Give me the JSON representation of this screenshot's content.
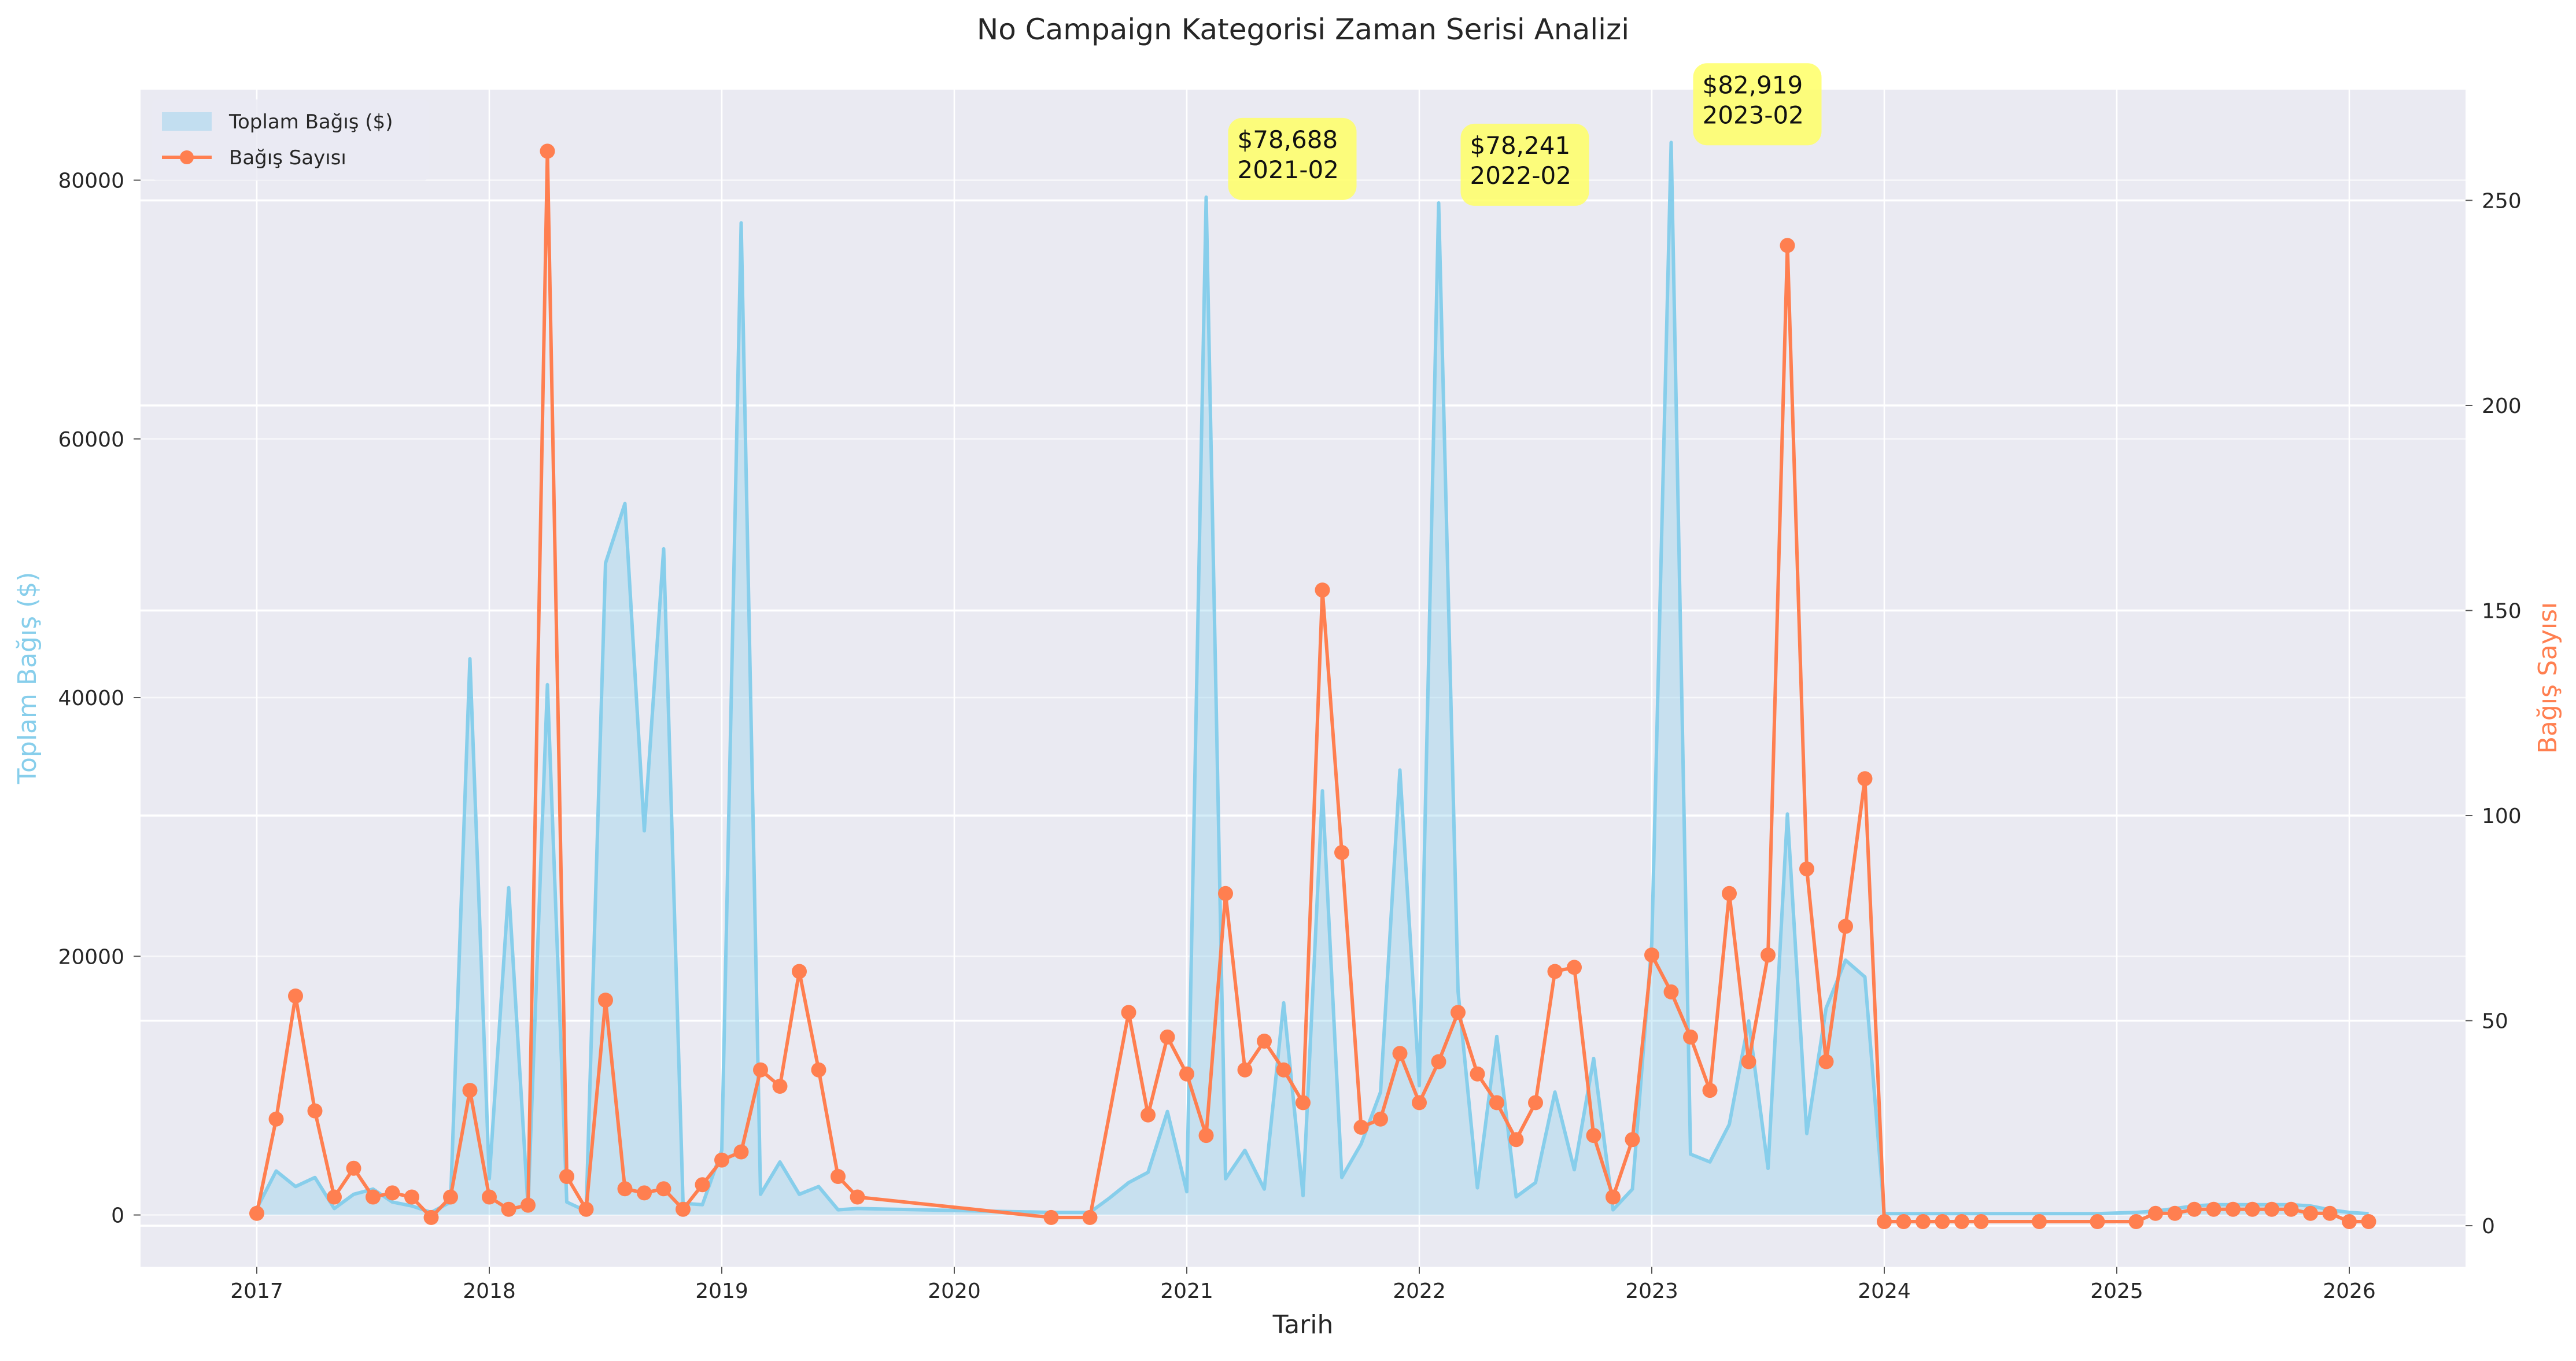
{
  "chart_data": {
    "type": "line",
    "title": "No Campaign Kategorisi Zaman Serisi Analizi",
    "xlabel": "Tarih",
    "ylabel_left": "Toplam Bağış ($)",
    "ylabel_right": "Bağış Sayısı",
    "xlim": [
      "2016-07",
      "2026-07"
    ],
    "ylim_left": [
      -4000,
      87000
    ],
    "ylim_right": [
      -10,
      277
    ],
    "x_ticks": [
      "2017",
      "2018",
      "2019",
      "2020",
      "2021",
      "2022",
      "2023",
      "2024",
      "2025",
      "2026"
    ],
    "y_ticks_left": [
      "0",
      "20000",
      "40000",
      "60000",
      "80000"
    ],
    "y_ticks_right": [
      "0",
      "50",
      "100",
      "150",
      "200",
      "250"
    ],
    "legend_position": "top-left",
    "grid": true,
    "colors": {
      "amount": "#87ceeb",
      "count": "#ff7f50",
      "annotation": "#ffff66",
      "plot_bg": "#eaeaf2",
      "grid": "#ffffff"
    },
    "series": [
      {
        "name": "Toplam Bağış ($)",
        "kind": "area",
        "axis": "left",
        "points": [
          [
            "2017-01",
            500
          ],
          [
            "2017-02",
            3400
          ],
          [
            "2017-03",
            2200
          ],
          [
            "2017-04",
            2900
          ],
          [
            "2017-05",
            500
          ],
          [
            "2017-06",
            1600
          ],
          [
            "2017-07",
            2000
          ],
          [
            "2017-08",
            1000
          ],
          [
            "2017-09",
            700
          ],
          [
            "2017-10",
            200
          ],
          [
            "2017-11",
            1000
          ],
          [
            "2017-12",
            43000
          ],
          [
            "2018-01",
            2800
          ],
          [
            "2018-02",
            25300
          ],
          [
            "2018-03",
            600
          ],
          [
            "2018-04",
            41000
          ],
          [
            "2018-05",
            1000
          ],
          [
            "2018-06",
            300
          ],
          [
            "2018-07",
            50400
          ],
          [
            "2018-08",
            55000
          ],
          [
            "2018-09",
            29700
          ],
          [
            "2018-10",
            51500
          ],
          [
            "2018-11",
            900
          ],
          [
            "2018-12",
            800
          ],
          [
            "2019-01",
            5000
          ],
          [
            "2019-02",
            76700
          ],
          [
            "2019-03",
            1600
          ],
          [
            "2019-04",
            4100
          ],
          [
            "2019-05",
            1600
          ],
          [
            "2019-06",
            2200
          ],
          [
            "2019-07",
            400
          ],
          [
            "2019-08",
            500
          ],
          [
            "2020-06",
            200
          ],
          [
            "2020-08",
            200
          ],
          [
            "2020-09",
            1300
          ],
          [
            "2020-10",
            2500
          ],
          [
            "2020-11",
            3300
          ],
          [
            "2020-12",
            8000
          ],
          [
            "2021-01",
            1800
          ],
          [
            "2021-02",
            78688
          ],
          [
            "2021-03",
            2800
          ],
          [
            "2021-04",
            5000
          ],
          [
            "2021-05",
            2000
          ],
          [
            "2021-06",
            16400
          ],
          [
            "2021-07",
            1500
          ],
          [
            "2021-08",
            32800
          ],
          [
            "2021-09",
            2900
          ],
          [
            "2021-10",
            5500
          ],
          [
            "2021-11",
            9500
          ],
          [
            "2021-12",
            34400
          ],
          [
            "2022-01",
            10000
          ],
          [
            "2022-02",
            78241
          ],
          [
            "2022-03",
            17300
          ],
          [
            "2022-04",
            2100
          ],
          [
            "2022-05",
            13800
          ],
          [
            "2022-06",
            1400
          ],
          [
            "2022-07",
            2500
          ],
          [
            "2022-08",
            9500
          ],
          [
            "2022-09",
            3500
          ],
          [
            "2022-10",
            12100
          ],
          [
            "2022-11",
            400
          ],
          [
            "2022-12",
            2000
          ],
          [
            "2023-01",
            21000
          ],
          [
            "2023-02",
            82919
          ],
          [
            "2023-03",
            4700
          ],
          [
            "2023-04",
            4100
          ],
          [
            "2023-05",
            7000
          ],
          [
            "2023-06",
            15000
          ],
          [
            "2023-07",
            3600
          ],
          [
            "2023-08",
            31000
          ],
          [
            "2023-09",
            6300
          ],
          [
            "2023-10",
            16000
          ],
          [
            "2023-11",
            19700
          ],
          [
            "2023-12",
            18400
          ],
          [
            "2024-01",
            100
          ],
          [
            "2024-02",
            100
          ],
          [
            "2024-03",
            100
          ],
          [
            "2024-04",
            100
          ],
          [
            "2024-05",
            100
          ],
          [
            "2024-06",
            100
          ],
          [
            "2024-09",
            100
          ],
          [
            "2024-12",
            100
          ],
          [
            "2025-02",
            200
          ],
          [
            "2025-03",
            300
          ],
          [
            "2025-04",
            500
          ],
          [
            "2025-05",
            700
          ],
          [
            "2025-06",
            800
          ],
          [
            "2025-07",
            800
          ],
          [
            "2025-08",
            800
          ],
          [
            "2025-09",
            800
          ],
          [
            "2025-10",
            800
          ],
          [
            "2025-11",
            700
          ],
          [
            "2025-12",
            400
          ],
          [
            "2026-01",
            200
          ],
          [
            "2026-02",
            100
          ]
        ]
      },
      {
        "name": "Bağış Sayısı",
        "kind": "line",
        "axis": "right",
        "points": [
          [
            "2017-01",
            3
          ],
          [
            "2017-02",
            26
          ],
          [
            "2017-03",
            56
          ],
          [
            "2017-04",
            28
          ],
          [
            "2017-05",
            7
          ],
          [
            "2017-06",
            14
          ],
          [
            "2017-07",
            7
          ],
          [
            "2017-08",
            8
          ],
          [
            "2017-09",
            7
          ],
          [
            "2017-10",
            2
          ],
          [
            "2017-11",
            7
          ],
          [
            "2017-12",
            33
          ],
          [
            "2018-01",
            7
          ],
          [
            "2018-02",
            4
          ],
          [
            "2018-03",
            5
          ],
          [
            "2018-04",
            262
          ],
          [
            "2018-05",
            12
          ],
          [
            "2018-06",
            4
          ],
          [
            "2018-07",
            55
          ],
          [
            "2018-08",
            9
          ],
          [
            "2018-09",
            8
          ],
          [
            "2018-10",
            9
          ],
          [
            "2018-11",
            4
          ],
          [
            "2018-12",
            10
          ],
          [
            "2019-01",
            16
          ],
          [
            "2019-02",
            18
          ],
          [
            "2019-03",
            38
          ],
          [
            "2019-04",
            34
          ],
          [
            "2019-05",
            62
          ],
          [
            "2019-06",
            38
          ],
          [
            "2019-07",
            12
          ],
          [
            "2019-08",
            7
          ],
          [
            "2020-06",
            2
          ],
          [
            "2020-08",
            2
          ],
          [
            "2020-10",
            52
          ],
          [
            "2020-11",
            27
          ],
          [
            "2020-12",
            46
          ],
          [
            "2021-01",
            37
          ],
          [
            "2021-02",
            22
          ],
          [
            "2021-03",
            81
          ],
          [
            "2021-04",
            38
          ],
          [
            "2021-05",
            45
          ],
          [
            "2021-06",
            38
          ],
          [
            "2021-07",
            30
          ],
          [
            "2021-08",
            155
          ],
          [
            "2021-09",
            91
          ],
          [
            "2021-10",
            24
          ],
          [
            "2021-11",
            26
          ],
          [
            "2021-12",
            42
          ],
          [
            "2022-01",
            30
          ],
          [
            "2022-02",
            40
          ],
          [
            "2022-03",
            52
          ],
          [
            "2022-04",
            37
          ],
          [
            "2022-05",
            30
          ],
          [
            "2022-06",
            21
          ],
          [
            "2022-07",
            30
          ],
          [
            "2022-08",
            62
          ],
          [
            "2022-09",
            63
          ],
          [
            "2022-10",
            22
          ],
          [
            "2022-11",
            7
          ],
          [
            "2022-12",
            21
          ],
          [
            "2023-01",
            66
          ],
          [
            "2023-02",
            57
          ],
          [
            "2023-03",
            46
          ],
          [
            "2023-04",
            33
          ],
          [
            "2023-05",
            81
          ],
          [
            "2023-06",
            40
          ],
          [
            "2023-07",
            66
          ],
          [
            "2023-08",
            239
          ],
          [
            "2023-09",
            87
          ],
          [
            "2023-10",
            40
          ],
          [
            "2023-11",
            73
          ],
          [
            "2023-12",
            109
          ],
          [
            "2024-01",
            1
          ],
          [
            "2024-02",
            1
          ],
          [
            "2024-03",
            1
          ],
          [
            "2024-04",
            1
          ],
          [
            "2024-05",
            1
          ],
          [
            "2024-06",
            1
          ],
          [
            "2024-09",
            1
          ],
          [
            "2024-12",
            1
          ],
          [
            "2025-02",
            1
          ],
          [
            "2025-03",
            3
          ],
          [
            "2025-04",
            3
          ],
          [
            "2025-05",
            4
          ],
          [
            "2025-06",
            4
          ],
          [
            "2025-07",
            4
          ],
          [
            "2025-08",
            4
          ],
          [
            "2025-09",
            4
          ],
          [
            "2025-10",
            4
          ],
          [
            "2025-11",
            3
          ],
          [
            "2025-12",
            3
          ],
          [
            "2026-01",
            1
          ],
          [
            "2026-02",
            1
          ]
        ]
      }
    ],
    "annotations": [
      {
        "x": "2021-02",
        "value": "$78,688",
        "date": "2021-02"
      },
      {
        "x": "2022-02",
        "value": "$78,241",
        "date": "2022-02"
      },
      {
        "x": "2023-02",
        "value": "$82,919",
        "date": "2023-02"
      }
    ]
  }
}
